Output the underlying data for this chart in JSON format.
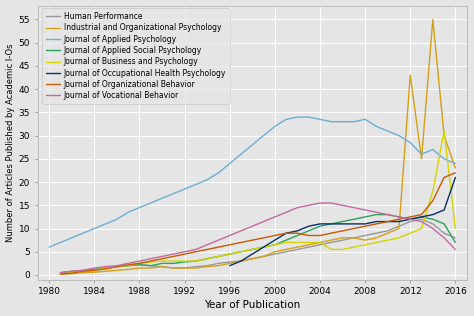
{
  "xlabel": "Year of Publication",
  "ylabel": "Number of Articles Published by Academic I-Os",
  "xlim": [
    1979,
    2017
  ],
  "ylim": [
    -1,
    58
  ],
  "yticks": [
    0,
    5,
    10,
    15,
    20,
    25,
    30,
    35,
    40,
    45,
    50,
    55
  ],
  "xticks": [
    1980,
    1984,
    1988,
    1992,
    1996,
    2000,
    2004,
    2008,
    2012,
    2016
  ],
  "background_color": "#e5e5e5",
  "grid_color": "#ffffff",
  "series": [
    {
      "label": "Human Performance",
      "color": "#999999",
      "x": [
        1981,
        1982,
        1983,
        1984,
        1985,
        1986,
        1987,
        1988,
        1989,
        1990,
        1991,
        1992,
        1993,
        1994,
        1995,
        1996,
        1997,
        1998,
        1999,
        2000,
        2001,
        2002,
        2003,
        2004,
        2005,
        2006,
        2007,
        2008,
        2009,
        2010,
        2011,
        2012,
        2013,
        2014,
        2015,
        2016
      ],
      "y": [
        0.3,
        0.5,
        0.8,
        1.0,
        1.5,
        1.8,
        2.0,
        2.2,
        2.0,
        1.8,
        1.5,
        1.5,
        1.8,
        2.0,
        2.5,
        2.8,
        3.0,
        3.5,
        4.0,
        4.5,
        5.0,
        5.5,
        6.0,
        6.5,
        7.0,
        7.5,
        8.0,
        8.5,
        9.0,
        9.5,
        10.5,
        11.5,
        12.0,
        11.0,
        9.0,
        8.0
      ]
    },
    {
      "label": "Industrial and Organizational Psychology",
      "color": "#D4A017",
      "x": [
        1981,
        1982,
        1983,
        1984,
        1985,
        1986,
        1987,
        1988,
        1989,
        1990,
        1991,
        1992,
        1993,
        1994,
        1995,
        1996,
        1997,
        1998,
        1999,
        2000,
        2001,
        2002,
        2003,
        2004,
        2005,
        2006,
        2007,
        2008,
        2009,
        2010,
        2011,
        2012,
        2013,
        2014,
        2015,
        2016
      ],
      "y": [
        0.2,
        0.3,
        0.5,
        0.6,
        0.8,
        1.0,
        1.2,
        1.5,
        1.5,
        1.8,
        1.5,
        1.5,
        1.5,
        1.8,
        2.0,
        2.5,
        3.0,
        3.5,
        4.0,
        5.0,
        5.5,
        6.0,
        6.5,
        7.0,
        7.5,
        8.0,
        8.0,
        7.5,
        8.0,
        9.0,
        10.0,
        43.0,
        25.0,
        55.0,
        30.0,
        23.0
      ]
    },
    {
      "label": "Journal of Applied Psychology",
      "color": "#6BAED6",
      "x": [
        1980,
        1981,
        1982,
        1983,
        1984,
        1985,
        1986,
        1987,
        1988,
        1989,
        1990,
        1991,
        1992,
        1993,
        1994,
        1995,
        1996,
        1997,
        1998,
        1999,
        2000,
        2001,
        2002,
        2003,
        2004,
        2005,
        2006,
        2007,
        2008,
        2009,
        2010,
        2011,
        2012,
        2013,
        2014,
        2015,
        2016
      ],
      "y": [
        6.0,
        7.0,
        8.0,
        9.0,
        10.0,
        11.0,
        12.0,
        13.5,
        14.5,
        15.5,
        16.5,
        17.5,
        18.5,
        19.5,
        20.5,
        22.0,
        24.0,
        26.0,
        28.0,
        30.0,
        32.0,
        33.5,
        34.0,
        34.0,
        33.5,
        33.0,
        33.0,
        33.0,
        33.5,
        32.0,
        31.0,
        30.0,
        28.5,
        26.0,
        27.0,
        25.0,
        24.0
      ]
    },
    {
      "label": "Journal of Applied Social Psychology",
      "color": "#2CA25F",
      "x": [
        1981,
        1982,
        1983,
        1984,
        1985,
        1986,
        1987,
        1988,
        1989,
        1990,
        1991,
        1992,
        1993,
        1994,
        1995,
        1996,
        1997,
        1998,
        1999,
        2000,
        2001,
        2002,
        2003,
        2004,
        2005,
        2006,
        2007,
        2008,
        2009,
        2010,
        2011,
        2012,
        2013,
        2014,
        2015,
        2016
      ],
      "y": [
        0.5,
        0.8,
        1.0,
        1.2,
        1.5,
        1.8,
        2.0,
        2.2,
        2.0,
        2.5,
        2.5,
        2.8,
        3.0,
        3.5,
        4.0,
        4.5,
        5.0,
        5.5,
        6.0,
        6.5,
        7.5,
        8.5,
        9.5,
        10.5,
        11.0,
        11.5,
        12.0,
        12.5,
        13.0,
        13.0,
        12.5,
        12.0,
        12.5,
        12.0,
        11.0,
        7.0
      ]
    },
    {
      "label": "Journal of Business and Psychology",
      "color": "#D4D400",
      "x": [
        1981,
        1982,
        1983,
        1984,
        1985,
        1986,
        1987,
        1988,
        1989,
        1990,
        1991,
        1992,
        1993,
        1994,
        1995,
        1996,
        1997,
        1998,
        1999,
        2000,
        2001,
        2002,
        2003,
        2004,
        2005,
        2006,
        2007,
        2008,
        2009,
        2010,
        2011,
        2012,
        2013,
        2014,
        2015,
        2016
      ],
      "y": [
        0.3,
        0.5,
        0.8,
        1.0,
        1.5,
        1.8,
        2.0,
        2.5,
        2.8,
        3.0,
        3.0,
        3.0,
        3.0,
        3.5,
        4.0,
        4.5,
        5.0,
        5.5,
        6.0,
        6.5,
        7.0,
        7.0,
        7.0,
        7.0,
        5.5,
        5.5,
        6.0,
        6.5,
        7.0,
        7.5,
        8.0,
        9.0,
        10.0,
        18.0,
        31.0,
        10.0
      ]
    },
    {
      "label": "Journal of Occupational Health Psychology",
      "color": "#08306B",
      "x": [
        1996,
        1997,
        1998,
        1999,
        2000,
        2001,
        2002,
        2003,
        2004,
        2005,
        2006,
        2007,
        2008,
        2009,
        2010,
        2011,
        2012,
        2013,
        2014,
        2015,
        2016
      ],
      "y": [
        2.0,
        3.0,
        4.5,
        6.0,
        7.5,
        9.0,
        9.5,
        10.5,
        11.0,
        11.0,
        11.0,
        11.0,
        11.0,
        11.5,
        11.5,
        11.5,
        12.0,
        12.5,
        13.0,
        14.0,
        21.0
      ]
    },
    {
      "label": "Journal of Organizational Behavior",
      "color": "#C85A00",
      "x": [
        1981,
        1982,
        1983,
        1984,
        1985,
        1986,
        1987,
        1988,
        1989,
        1990,
        1991,
        1992,
        1993,
        1994,
        1995,
        1996,
        1997,
        1998,
        1999,
        2000,
        2001,
        2002,
        2003,
        2004,
        2005,
        2006,
        2007,
        2008,
        2009,
        2010,
        2011,
        2012,
        2013,
        2014,
        2015,
        2016
      ],
      "y": [
        0.2,
        0.4,
        0.8,
        1.0,
        1.3,
        1.8,
        2.2,
        2.5,
        3.0,
        3.5,
        4.0,
        4.5,
        5.0,
        5.5,
        6.0,
        6.5,
        7.0,
        7.5,
        8.0,
        8.5,
        9.0,
        9.0,
        8.5,
        8.5,
        9.0,
        9.5,
        10.0,
        10.5,
        11.0,
        11.5,
        12.0,
        12.5,
        13.0,
        16.0,
        21.0,
        22.0
      ]
    },
    {
      "label": "Journal of Vocational Behavior",
      "color": "#C469A0",
      "x": [
        1981,
        1982,
        1983,
        1984,
        1985,
        1986,
        1987,
        1988,
        1989,
        1990,
        1991,
        1992,
        1993,
        1994,
        1995,
        1996,
        1997,
        1998,
        1999,
        2000,
        2001,
        2002,
        2003,
        2004,
        2005,
        2006,
        2007,
        2008,
        2009,
        2010,
        2011,
        2012,
        2013,
        2014,
        2015,
        2016
      ],
      "y": [
        0.5,
        0.8,
        1.0,
        1.5,
        1.8,
        2.0,
        2.5,
        3.0,
        3.5,
        4.0,
        4.5,
        5.0,
        5.5,
        6.5,
        7.5,
        8.5,
        9.5,
        10.5,
        11.5,
        12.5,
        13.5,
        14.5,
        15.0,
        15.5,
        15.5,
        15.0,
        14.5,
        14.0,
        13.5,
        13.0,
        12.5,
        12.0,
        11.5,
        10.0,
        8.0,
        5.5
      ]
    }
  ],
  "legend_fontsize": 5.5,
  "tick_fontsize": 6.5,
  "xlabel_fontsize": 7.5,
  "ylabel_fontsize": 6.0,
  "linewidth": 1.0
}
